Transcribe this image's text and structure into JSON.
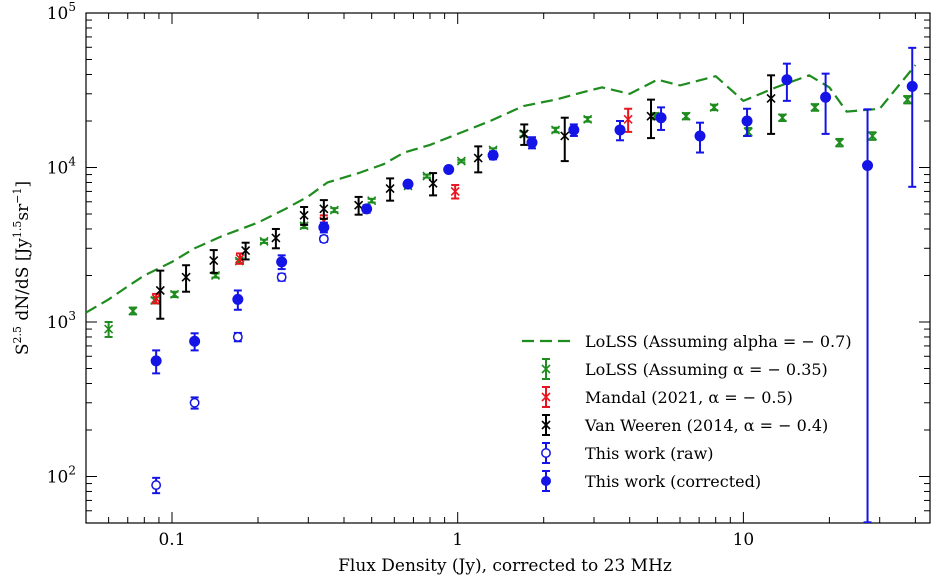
{
  "chart_data": {
    "type": "scatter",
    "title": "",
    "xlabel": "Flux Density (Jy), corrected to 23 MHz",
    "ylabel_parts": {
      "base": "S",
      "sup1": "2.5",
      "mid": " dN/dS [Jy",
      "sup2": "1.5",
      "mid2": "sr",
      "sup3": "−1",
      "end": "]"
    },
    "xscale": "log",
    "yscale": "log",
    "xlim": [
      0.05,
      45
    ],
    "ylim": [
      50,
      100000
    ],
    "grid": false,
    "legend_position": "bottom-right",
    "x_tick_labels": [
      {
        "value": 0.1,
        "label": "0.1"
      },
      {
        "value": 1,
        "label": "1"
      },
      {
        "value": 10,
        "label": "10"
      }
    ],
    "y_tick_labels": [
      {
        "value": 100,
        "base": "10",
        "exp": "2"
      },
      {
        "value": 1000,
        "base": "10",
        "exp": "3"
      },
      {
        "value": 10000,
        "base": "10",
        "exp": "4"
      },
      {
        "value": 100000,
        "base": "10",
        "exp": "5"
      }
    ],
    "series": [
      {
        "key": "lolss_line",
        "name": "LoLSS (Assuming alpha = − 0.7)",
        "style": "dashed-line",
        "color": "#1e8c1e",
        "points": [
          [
            0.05,
            1150
          ],
          [
            0.06,
            1400
          ],
          [
            0.07,
            1700
          ],
          [
            0.08,
            2000
          ],
          [
            0.1,
            2450
          ],
          [
            0.12,
            3000
          ],
          [
            0.15,
            3600
          ],
          [
            0.2,
            4400
          ],
          [
            0.25,
            5400
          ],
          [
            0.3,
            6500
          ],
          [
            0.35,
            8000
          ],
          [
            0.45,
            9200
          ],
          [
            0.55,
            10500
          ],
          [
            0.65,
            12500
          ],
          [
            0.8,
            14000
          ],
          [
            1.0,
            16500
          ],
          [
            1.3,
            20000
          ],
          [
            1.7,
            25000
          ],
          [
            2.2,
            27500
          ],
          [
            2.8,
            31000
          ],
          [
            3.2,
            33000
          ],
          [
            4.0,
            30000
          ],
          [
            5.0,
            37000
          ],
          [
            6.0,
            34000
          ],
          [
            8.0,
            39000
          ],
          [
            10.0,
            27000
          ],
          [
            13.0,
            33000
          ],
          [
            17.0,
            39500
          ],
          [
            20.0,
            33000
          ],
          [
            23.0,
            23000
          ],
          [
            30.0,
            24000
          ],
          [
            40.0,
            46000
          ]
        ]
      },
      {
        "key": "lolss_pts",
        "name": "LoLSS (Assuming α = − 0.35)",
        "style": "x-marker",
        "color": "#1e8c1e",
        "points": [
          [
            0.06,
            900,
            100
          ],
          [
            0.073,
            1180,
            60
          ],
          [
            0.087,
            1380,
            60
          ],
          [
            0.102,
            1510,
            60
          ],
          [
            0.142,
            2000,
            60
          ],
          [
            0.172,
            2480,
            70
          ],
          [
            0.21,
            3330,
            80
          ],
          [
            0.29,
            4200,
            150
          ],
          [
            0.37,
            5300,
            160
          ],
          [
            0.5,
            6100,
            170
          ],
          [
            0.67,
            7600,
            180
          ],
          [
            0.78,
            8800,
            200
          ],
          [
            1.03,
            11000,
            200
          ],
          [
            1.33,
            13000,
            300
          ],
          [
            1.7,
            16500,
            600
          ],
          [
            2.2,
            17500,
            600
          ],
          [
            2.85,
            20500,
            700
          ],
          [
            4.9,
            21500,
            1000
          ],
          [
            6.3,
            21500,
            1000
          ],
          [
            7.9,
            24500,
            1000
          ],
          [
            10.4,
            17000,
            1000
          ],
          [
            13.7,
            21000,
            1000
          ],
          [
            17.8,
            24500,
            1200
          ],
          [
            21.7,
            14500,
            800
          ],
          [
            28.3,
            16000,
            900
          ],
          [
            37.5,
            27500,
            1500
          ]
        ]
      },
      {
        "key": "mandal",
        "name": "Mandal (2021, α = − 0.5)",
        "style": "x-marker",
        "color": "#e8141e",
        "points": [
          [
            0.088,
            1420,
            100
          ],
          [
            0.173,
            2580,
            200
          ],
          [
            0.34,
            4500,
            400
          ],
          [
            0.98,
            7000,
            700
          ],
          [
            3.95,
            20500,
            3500
          ]
        ]
      },
      {
        "key": "vanweeren",
        "name": "Van Weeren (2014, α = − 0.4)",
        "style": "x-marker",
        "color": "#000000",
        "points": [
          [
            0.091,
            1600,
            550
          ],
          [
            0.112,
            1950,
            380
          ],
          [
            0.14,
            2500,
            420
          ],
          [
            0.181,
            2900,
            360
          ],
          [
            0.231,
            3500,
            500
          ],
          [
            0.29,
            4900,
            650
          ],
          [
            0.34,
            5400,
            750
          ],
          [
            0.45,
            5700,
            750
          ],
          [
            0.58,
            7300,
            1200
          ],
          [
            0.82,
            7900,
            1300
          ],
          [
            1.18,
            11500,
            2200
          ],
          [
            1.71,
            16500,
            2500
          ],
          [
            2.37,
            16000,
            5000
          ],
          [
            4.75,
            21500,
            6000
          ],
          [
            12.5,
            28000,
            11500
          ]
        ]
      },
      {
        "key": "raw",
        "name": "This work (raw)",
        "style": "open-circle",
        "color": "#1414e6",
        "points": [
          [
            0.088,
            88,
            10
          ],
          [
            0.12,
            300,
            25
          ],
          [
            0.17,
            800,
            50
          ],
          [
            0.242,
            1950,
            100
          ],
          [
            0.34,
            3450,
            150
          ]
        ]
      },
      {
        "key": "corrected",
        "name": "This work (corrected)",
        "style": "filled-circle",
        "color": "#1414e6",
        "points": [
          [
            0.088,
            560,
            95
          ],
          [
            0.12,
            750,
            95
          ],
          [
            0.17,
            1400,
            200
          ],
          [
            0.242,
            2450,
            250
          ],
          [
            0.34,
            4100,
            300
          ],
          [
            0.48,
            5400,
            300
          ],
          [
            0.67,
            7800,
            300
          ],
          [
            0.93,
            9700,
            400
          ],
          [
            1.33,
            12000,
            700
          ],
          [
            1.82,
            14500,
            1200
          ],
          [
            2.55,
            17500,
            1500
          ],
          [
            3.7,
            17500,
            2500
          ],
          [
            5.15,
            21000,
            3500
          ],
          [
            7.05,
            16000,
            3500
          ],
          [
            10.3,
            20000,
            4000
          ],
          [
            14.2,
            37000,
            10000
          ],
          [
            19.4,
            28500,
            12000
          ],
          [
            27.2,
            10300,
            13500
          ],
          [
            39.0,
            33500,
            26000
          ]
        ]
      }
    ],
    "legend_order": [
      "lolss_line",
      "lolss_pts",
      "mandal",
      "vanweeren",
      "raw",
      "corrected"
    ]
  }
}
